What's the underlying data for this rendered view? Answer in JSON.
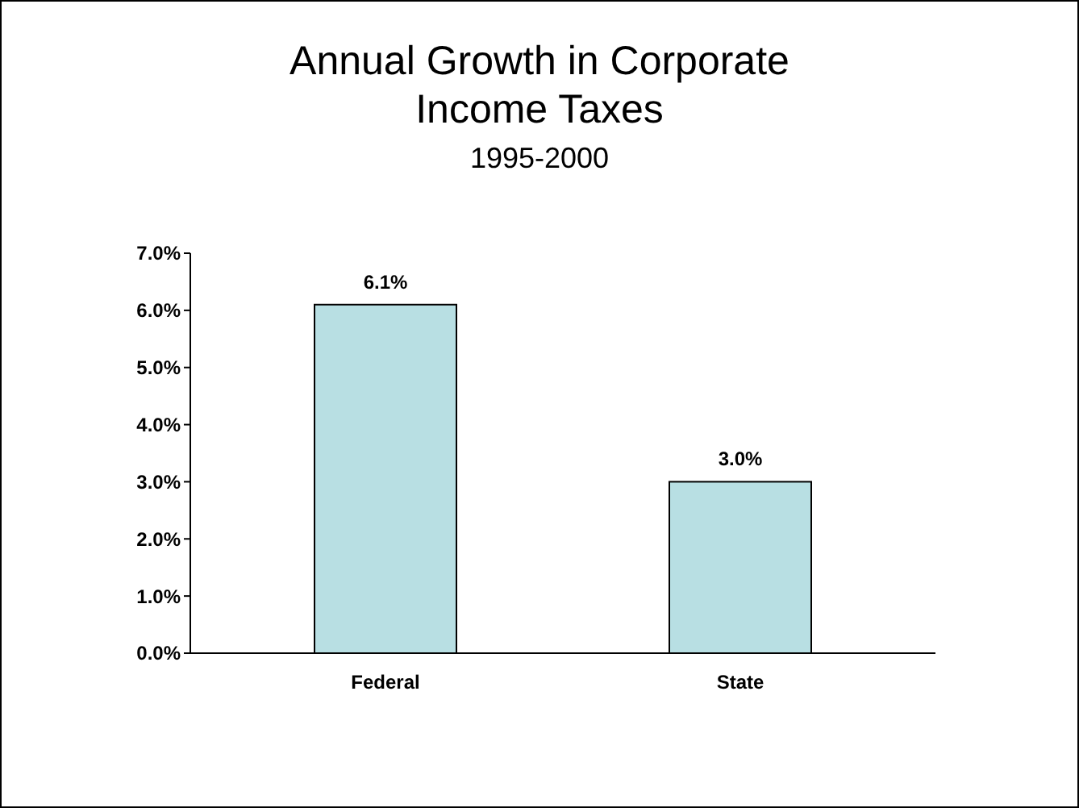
{
  "chart_data": {
    "type": "bar",
    "title": "Annual Growth in Corporate Income Taxes",
    "subtitle": "1995-2000",
    "categories": [
      "Federal",
      "State"
    ],
    "values": [
      6.1,
      3.0
    ],
    "value_labels": [
      "6.1%",
      "3.0%"
    ],
    "color": "#b8dfe3",
    "ylim": [
      0,
      7
    ],
    "yticks": [
      {
        "value": 0,
        "label": "0.0%"
      },
      {
        "value": 1,
        "label": "1.0%"
      },
      {
        "value": 2,
        "label": "2.0%"
      },
      {
        "value": 3,
        "label": "3.0%"
      },
      {
        "value": 4,
        "label": "4.0%"
      },
      {
        "value": 5,
        "label": "5.0%"
      },
      {
        "value": 6,
        "label": "6.0%"
      },
      {
        "value": 7,
        "label": "7.0%"
      }
    ],
    "grid": false
  }
}
